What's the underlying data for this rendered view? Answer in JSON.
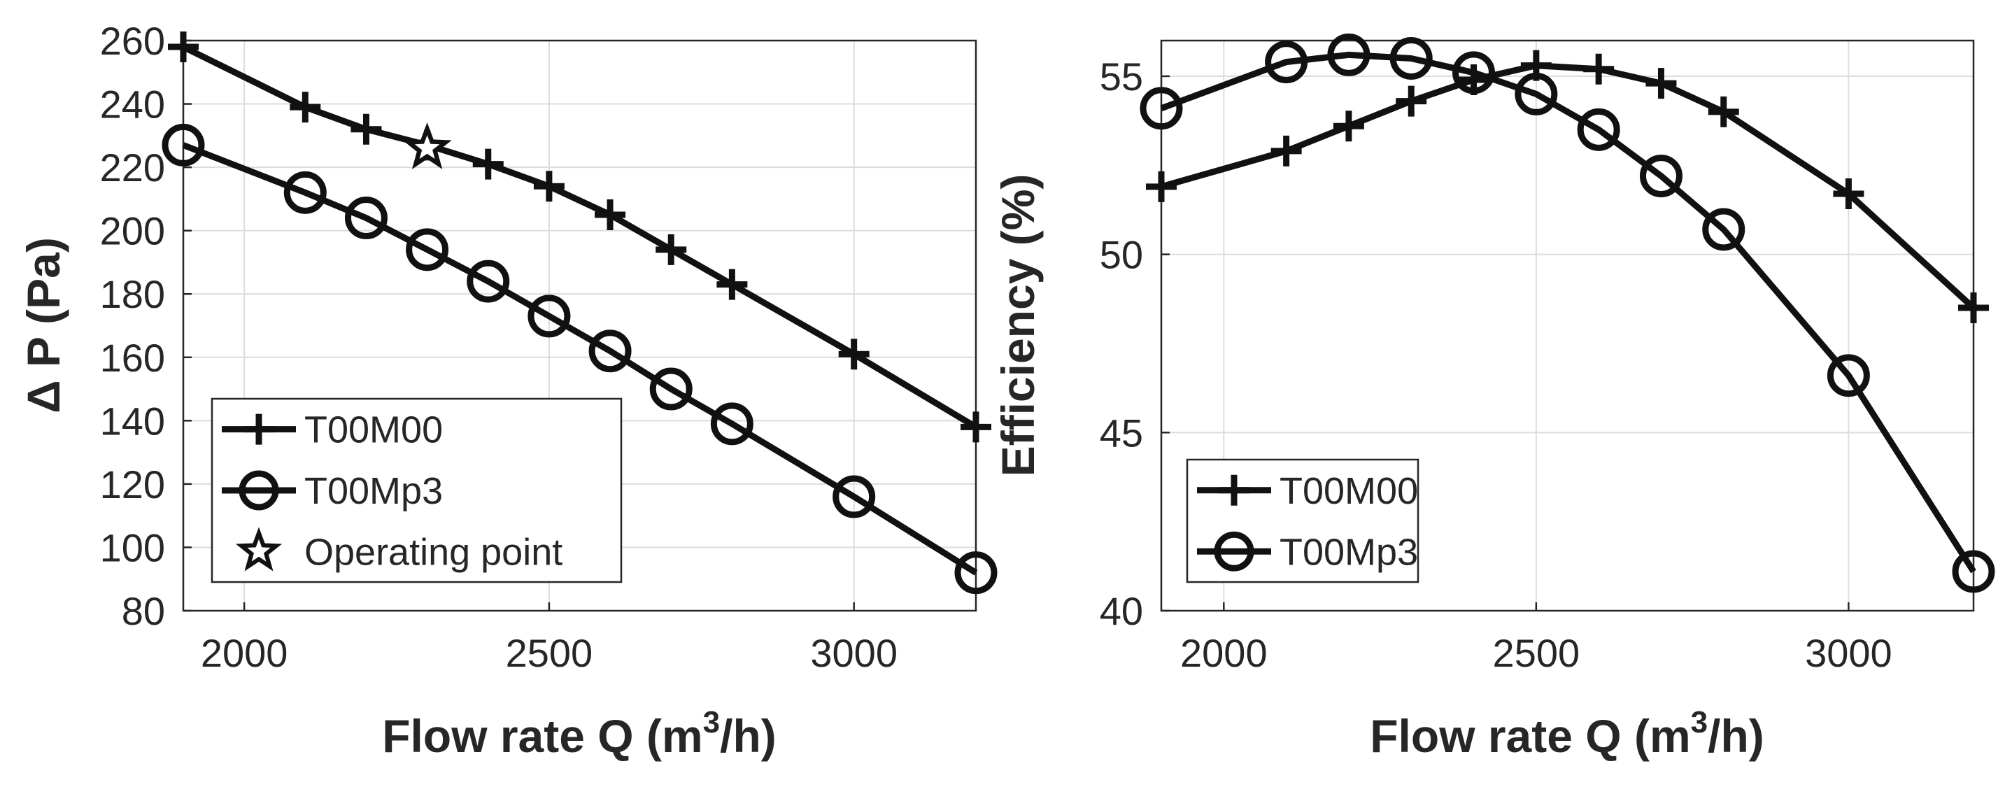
{
  "chart_data": [
    {
      "type": "line",
      "xlabel": "Flow rate Q (m³/h)",
      "xlabel_main": "Flow rate Q (m",
      "xlabel_sup": "3",
      "xlabel_tail": "/h)",
      "ylabel": "Δ P (Pa)",
      "xlim": [
        1900,
        3200
      ],
      "ylim": [
        80,
        260
      ],
      "xticks": [
        2000,
        2500,
        3000
      ],
      "yticks": [
        80,
        100,
        120,
        140,
        160,
        180,
        200,
        220,
        240,
        260
      ],
      "grid": true,
      "legend_position": "bottom-left",
      "series": [
        {
          "name": "T00M00",
          "marker": "plus",
          "x": [
            1900,
            2100,
            2200,
            2300,
            2400,
            2500,
            2600,
            2700,
            2800,
            3000,
            3200
          ],
          "y": [
            258,
            239,
            232,
            227,
            221,
            214,
            205,
            194,
            183,
            161,
            138
          ]
        },
        {
          "name": "T00Mp3",
          "marker": "circle",
          "x": [
            1900,
            2100,
            2200,
            2300,
            2400,
            2500,
            2600,
            2700,
            2800,
            3000,
            3200
          ],
          "y": [
            227,
            212,
            204,
            194,
            184,
            173,
            162,
            150,
            139,
            116,
            92
          ]
        },
        {
          "name": "Operating point",
          "marker": "star",
          "x": [
            2300
          ],
          "y": [
            226
          ]
        }
      ]
    },
    {
      "type": "line",
      "xlabel": "Flow rate Q (m³/h)",
      "xlabel_main": "Flow rate Q (m",
      "xlabel_sup": "3",
      "xlabel_tail": "/h)",
      "ylabel": "Efficiency (%)",
      "xlim": [
        1900,
        3200
      ],
      "ylim": [
        40,
        56
      ],
      "xticks": [
        2000,
        2500,
        3000
      ],
      "yticks": [
        40,
        45,
        50,
        55
      ],
      "grid": true,
      "legend_position": "bottom-left",
      "series": [
        {
          "name": "T00M00",
          "marker": "plus",
          "x": [
            1900,
            2100,
            2200,
            2300,
            2400,
            2500,
            2600,
            2700,
            2800,
            3000,
            3200
          ],
          "y": [
            51.9,
            52.9,
            53.6,
            54.3,
            54.9,
            55.3,
            55.2,
            54.8,
            54.0,
            51.7,
            48.5
          ]
        },
        {
          "name": "T00Mp3",
          "marker": "circle",
          "x": [
            1900,
            2100,
            2200,
            2300,
            2400,
            2500,
            2600,
            2700,
            2800,
            3000,
            3200
          ],
          "y": [
            54.1,
            55.4,
            55.6,
            55.5,
            55.1,
            54.5,
            53.5,
            52.2,
            50.7,
            46.6,
            41.1
          ]
        }
      ]
    }
  ]
}
